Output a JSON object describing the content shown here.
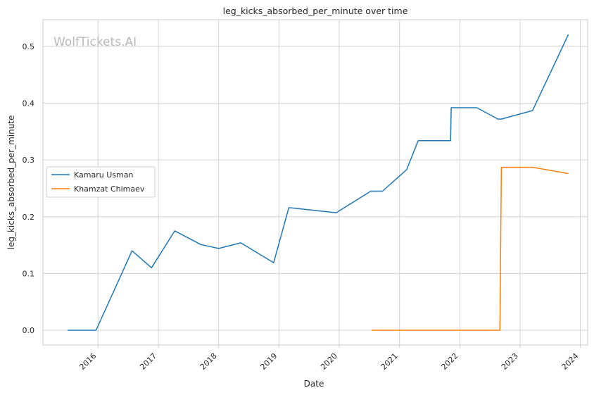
{
  "chart_data": {
    "type": "line",
    "title": "leg_kicks_absorbed_per_minute over time",
    "xlabel": "Date",
    "ylabel": "leg_kicks_absorbed_per_minute",
    "watermark": "WolfTickets.AI",
    "xlim": [
      "2015-02-01",
      "2024-02-15"
    ],
    "ylim": [
      -0.026,
      0.547
    ],
    "x_ticks": [
      "2016",
      "2017",
      "2018",
      "2019",
      "2020",
      "2021",
      "2022",
      "2023",
      "2024"
    ],
    "y_ticks": [
      "0.0",
      "0.1",
      "0.2",
      "0.3",
      "0.4",
      "0.5"
    ],
    "grid": true,
    "legend_position": "center-left",
    "series": [
      {
        "name": "Kamaru Usman",
        "color": "#1f77b4",
        "points": [
          {
            "x": "2015-07-01",
            "y": 0.0
          },
          {
            "x": "2015-12-20",
            "y": 0.0
          },
          {
            "x": "2016-07-25",
            "y": 0.14
          },
          {
            "x": "2016-11-20",
            "y": 0.11
          },
          {
            "x": "2017-04-10",
            "y": 0.175
          },
          {
            "x": "2017-09-15",
            "y": 0.151
          },
          {
            "x": "2018-01-01",
            "y": 0.144
          },
          {
            "x": "2018-05-15",
            "y": 0.154
          },
          {
            "x": "2018-11-30",
            "y": 0.119
          },
          {
            "x": "2019-03-02",
            "y": 0.216
          },
          {
            "x": "2019-12-14",
            "y": 0.207
          },
          {
            "x": "2020-07-11",
            "y": 0.245
          },
          {
            "x": "2020-09-20",
            "y": 0.245
          },
          {
            "x": "2021-02-13",
            "y": 0.283
          },
          {
            "x": "2021-04-24",
            "y": 0.334
          },
          {
            "x": "2021-11-06",
            "y": 0.334
          },
          {
            "x": "2021-11-10",
            "y": 0.392
          },
          {
            "x": "2022-04-15",
            "y": 0.392
          },
          {
            "x": "2022-08-20",
            "y": 0.372
          },
          {
            "x": "2022-09-10",
            "y": 0.372
          },
          {
            "x": "2023-03-18",
            "y": 0.387
          },
          {
            "x": "2023-10-21",
            "y": 0.521
          }
        ]
      },
      {
        "name": "Khamzat Chimaev",
        "color": "#ff7f0e",
        "points": [
          {
            "x": "2020-07-16",
            "y": 0.0
          },
          {
            "x": "2022-09-01",
            "y": 0.0
          },
          {
            "x": "2022-09-10",
            "y": 0.287
          },
          {
            "x": "2023-03-18",
            "y": 0.287
          },
          {
            "x": "2023-10-21",
            "y": 0.276
          }
        ]
      }
    ]
  }
}
